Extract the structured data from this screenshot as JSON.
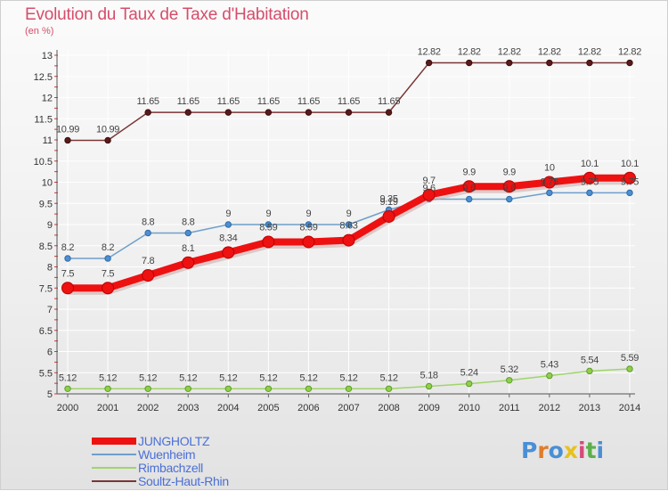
{
  "header": {
    "title": "Evolution du Taux de Taxe d'Habitation",
    "subtitle": "(en %)"
  },
  "logo": {
    "text": "Proxiti",
    "letter_colors": [
      "#4a8fd6",
      "#e07c2a",
      "#4a8fd6",
      "#e8c21c",
      "#d64a7a",
      "#5bb04a",
      "#4a8fd6"
    ]
  },
  "colors": {
    "JUNGHOLTZ": "#ee1111",
    "Wuenheim": "#6e9fca",
    "Rimbachzell": "#9fd56a",
    "Soultz-Haut-Rhin": "#7a3535",
    "axis_tick_red": "#dd3333",
    "grid": "#ffffff"
  },
  "chart_data": {
    "type": "line",
    "title": "Evolution du Taux de Taxe d'Habitation",
    "ylabel": "(en %)",
    "xlabel": "",
    "x": [
      2000,
      2001,
      2002,
      2003,
      2004,
      2005,
      2006,
      2007,
      2008,
      2009,
      2010,
      2011,
      2012,
      2013,
      2014
    ],
    "ylim": [
      5,
      13
    ],
    "yticks": [
      5,
      5.5,
      6,
      6.5,
      7,
      7.5,
      8,
      8.5,
      9,
      9.5,
      10,
      10.5,
      11,
      11.5,
      12,
      12.5,
      13
    ],
    "grid": true,
    "legend_position": "bottom-left",
    "series": [
      {
        "name": "Soultz-Haut-Rhin",
        "values": [
          10.99,
          10.99,
          11.65,
          11.65,
          11.65,
          11.65,
          11.65,
          11.65,
          11.65,
          12.82,
          12.82,
          12.82,
          12.82,
          12.82,
          12.82
        ],
        "labels": [
          "10.99",
          "10.99",
          "11.65",
          "11.65",
          "11.65",
          "11.65",
          "11.65",
          "11.65",
          "11.65",
          "12.82",
          "12.82",
          "12.82",
          "12.82",
          "12.82",
          "12.82"
        ]
      },
      {
        "name": "Wuenheim",
        "values": [
          8.2,
          8.2,
          8.8,
          8.8,
          9,
          9,
          9,
          9,
          9.35,
          9.6,
          9.6,
          9.6,
          9.75,
          9.75,
          9.75
        ],
        "labels": [
          "8.2",
          "8.2",
          "8.8",
          "8.8",
          "9",
          "9",
          "9",
          "9",
          "9.35",
          "9.6",
          "9.6",
          "9.6",
          "9.75",
          "9.75",
          "9.75"
        ]
      },
      {
        "name": "Rimbachzell",
        "values": [
          5.12,
          5.12,
          5.12,
          5.12,
          5.12,
          5.12,
          5.12,
          5.12,
          5.12,
          5.18,
          5.24,
          5.32,
          5.43,
          5.54,
          5.59
        ],
        "labels": [
          "5.12",
          "5.12",
          "5.12",
          "5.12",
          "5.12",
          "5.12",
          "5.12",
          "5.12",
          "5.12",
          "5.18",
          "5.24",
          "5.32",
          "5.43",
          "5.54",
          "5.59"
        ]
      },
      {
        "name": "JUNGHOLTZ",
        "values": [
          7.5,
          7.5,
          7.8,
          8.1,
          8.34,
          8.59,
          8.59,
          8.63,
          9.19,
          9.7,
          9.9,
          9.9,
          10,
          10.1,
          10.1
        ],
        "labels": [
          "7.5",
          "7.5",
          "7.8",
          "8.1",
          "8.34",
          "8.59",
          "8.59",
          "8.63",
          "9.19",
          "9.7",
          "9.9",
          "9.9",
          "10",
          "10.1",
          "10.1"
        ]
      }
    ]
  },
  "legend": {
    "items": [
      {
        "label": "JUNGHOLTZ",
        "color_key": "JUNGHOLTZ"
      },
      {
        "label": "Wuenheim",
        "color_key": "Wuenheim"
      },
      {
        "label": "Rimbachzell",
        "color_key": "Rimbachzell"
      },
      {
        "label": "Soultz-Haut-Rhin",
        "color_key": "Soultz-Haut-Rhin"
      }
    ]
  }
}
